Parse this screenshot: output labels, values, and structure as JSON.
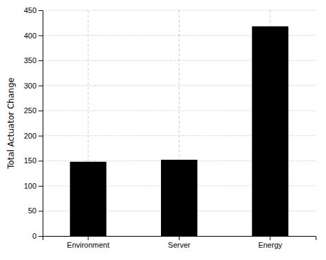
{
  "chart_data": {
    "type": "bar",
    "categories": [
      "Environment",
      "Server",
      "Energy"
    ],
    "values": [
      148,
      152,
      418
    ],
    "color": "#000000",
    "ylabel": "Total Actuator Change",
    "ylim": [
      0,
      450
    ],
    "yticks": [
      0,
      50,
      100,
      150,
      200,
      250,
      300,
      350,
      400,
      450
    ],
    "grid": true
  }
}
